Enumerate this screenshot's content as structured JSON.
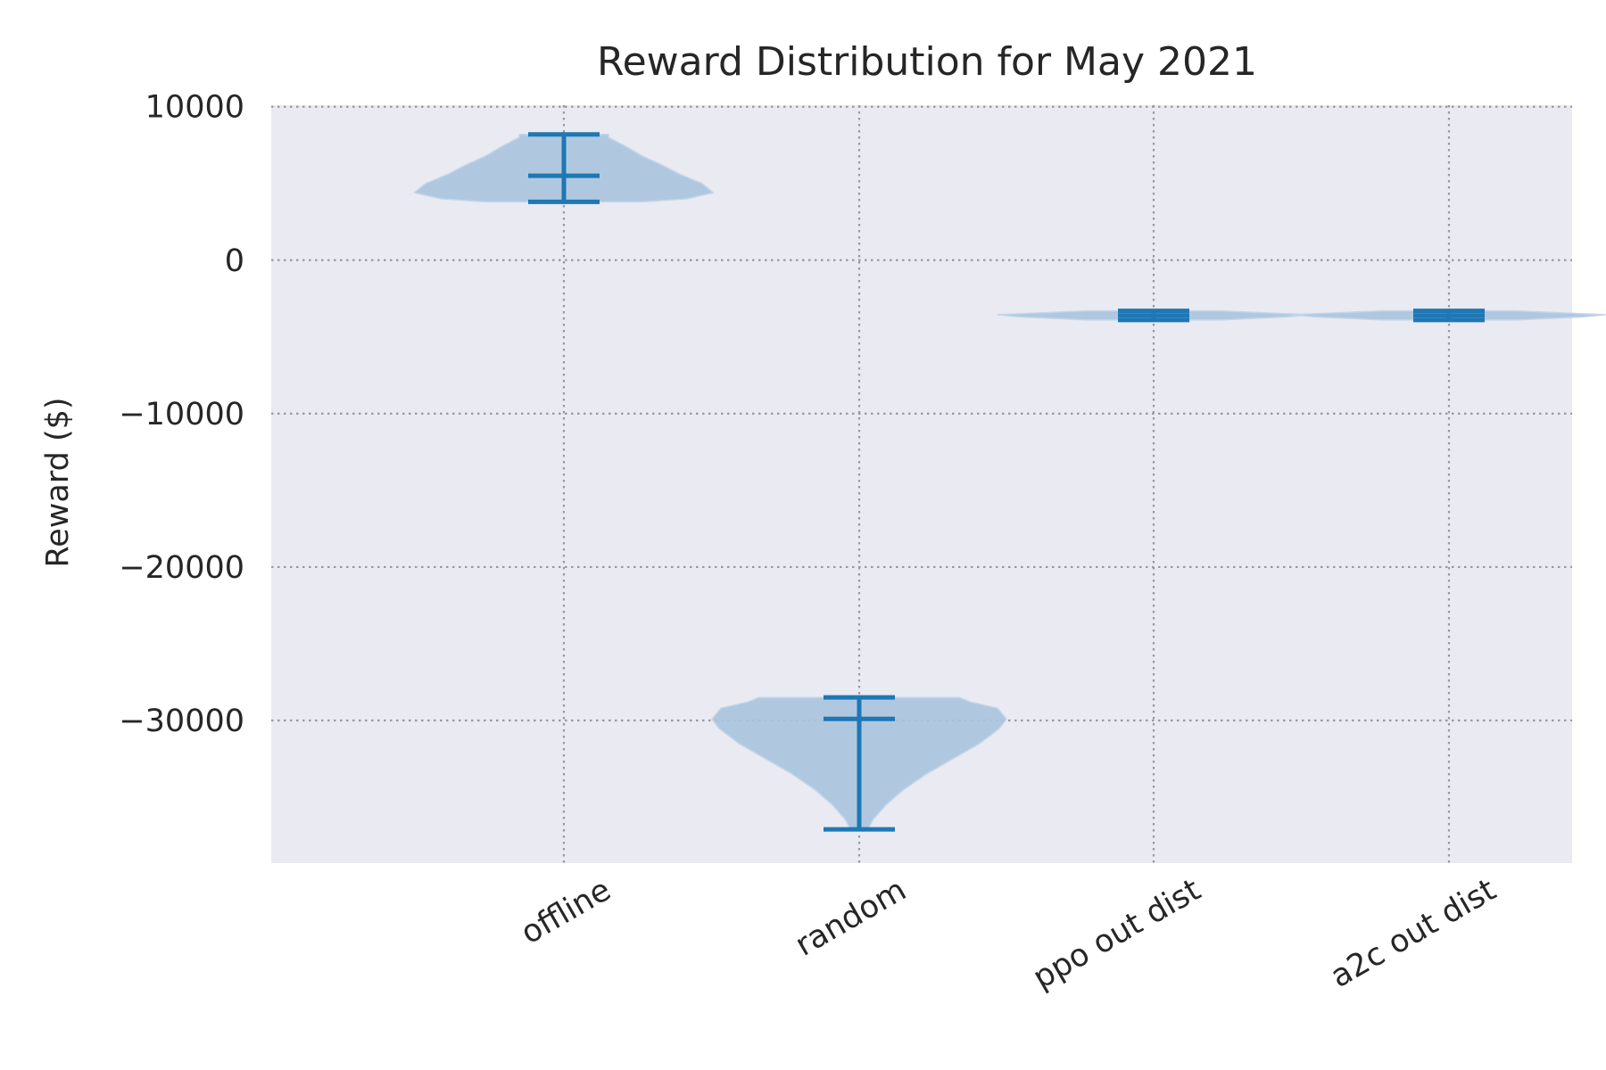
{
  "chart_data": {
    "type": "violin",
    "title": "Reward Distribution for May 2021",
    "xlabel": "",
    "ylabel": "Reward ($)",
    "ylim": [
      -39300,
      10100
    ],
    "yticks": [
      10000,
      0,
      -10000,
      -20000,
      -30000
    ],
    "ytick_labels": [
      "10000",
      "0",
      "−10000",
      "−20000",
      "−30000"
    ],
    "grid": true,
    "categories": [
      "offline",
      "random",
      "ppo out dist",
      "a2c out dist"
    ],
    "violins": [
      {
        "category": "offline",
        "min": 3800,
        "median": 5500,
        "max": 8200,
        "density": [
          [
            3800,
            0.35
          ],
          [
            4000,
            0.55
          ],
          [
            4400,
            0.67
          ],
          [
            5000,
            0.62
          ],
          [
            5600,
            0.52
          ],
          [
            6200,
            0.44
          ],
          [
            6800,
            0.35
          ],
          [
            7400,
            0.28
          ],
          [
            8000,
            0.2
          ],
          [
            8200,
            0.2
          ]
        ]
      },
      {
        "category": "random",
        "min": -37100,
        "median": -29900,
        "max": -28500,
        "density": [
          [
            -37100,
            0.04
          ],
          [
            -36500,
            0.06
          ],
          [
            -35500,
            0.12
          ],
          [
            -34500,
            0.2
          ],
          [
            -33500,
            0.3
          ],
          [
            -32500,
            0.42
          ],
          [
            -31500,
            0.54
          ],
          [
            -30500,
            0.63
          ],
          [
            -29900,
            0.66
          ],
          [
            -29200,
            0.62
          ],
          [
            -28800,
            0.5
          ],
          [
            -28500,
            0.45
          ]
        ]
      },
      {
        "category": "ppo out dist",
        "min": -3900,
        "median": -3600,
        "max": -3300,
        "density": [
          [
            -3900,
            0.3
          ],
          [
            -3700,
            0.6
          ],
          [
            -3550,
            0.7
          ],
          [
            -3400,
            0.45
          ],
          [
            -3300,
            0.3
          ]
        ]
      },
      {
        "category": "a2c out dist",
        "min": -3900,
        "median": -3600,
        "max": -3300,
        "density": [
          [
            -3900,
            0.3
          ],
          [
            -3700,
            0.6
          ],
          [
            -3550,
            0.7
          ],
          [
            -3400,
            0.45
          ],
          [
            -3300,
            0.3
          ]
        ]
      }
    ],
    "colors": {
      "background": "#eaeaf2",
      "grid": "#9a9a9a",
      "violin_fill": "#a9c4de",
      "violin_stroke": "#1f77b4",
      "text": "#262626"
    }
  }
}
